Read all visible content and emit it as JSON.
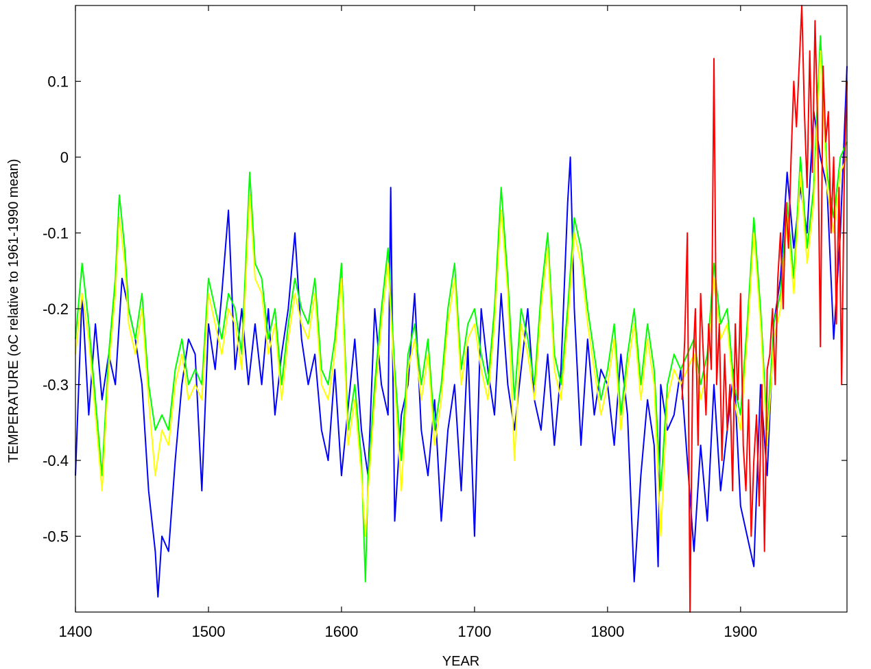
{
  "chart_data": {
    "type": "line",
    "title": "",
    "xlabel": "YEAR",
    "ylabel": "TEMPERATURE (oC relative to 1961-1990 mean)",
    "xlim": [
      1400,
      1980
    ],
    "ylim": [
      -0.6,
      0.2
    ],
    "xticks": [
      1400,
      1500,
      1600,
      1700,
      1800,
      1900
    ],
    "yticks": [
      -0.5,
      -0.4,
      -0.3,
      -0.2,
      -0.1,
      0,
      0.1
    ],
    "ytick_labels": [
      "-0.5",
      "-0.4",
      "-0.3",
      "-0.2",
      "-0.1",
      "0",
      "0.1"
    ],
    "xtick_labels": [
      "1400",
      "1500",
      "1600",
      "1700",
      "1800",
      "1900"
    ],
    "grid": false,
    "legend": "none",
    "series": [
      {
        "color": "#0000ff",
        "x": [
          1400,
          1405,
          1410,
          1415,
          1420,
          1425,
          1430,
          1435,
          1440,
          1445,
          1450,
          1455,
          1460,
          1462,
          1465,
          1470,
          1475,
          1480,
          1485,
          1490,
          1495,
          1500,
          1505,
          1510,
          1515,
          1520,
          1525,
          1530,
          1535,
          1540,
          1545,
          1550,
          1555,
          1560,
          1565,
          1570,
          1575,
          1580,
          1585,
          1590,
          1595,
          1600,
          1605,
          1610,
          1615,
          1620,
          1625,
          1630,
          1635,
          1637,
          1640,
          1645,
          1650,
          1655,
          1660,
          1665,
          1670,
          1675,
          1680,
          1685,
          1690,
          1695,
          1700,
          1705,
          1710,
          1715,
          1720,
          1725,
          1730,
          1735,
          1740,
          1745,
          1750,
          1755,
          1760,
          1765,
          1770,
          1772,
          1775,
          1780,
          1785,
          1790,
          1795,
          1800,
          1805,
          1810,
          1815,
          1820,
          1825,
          1830,
          1835,
          1838,
          1840,
          1845,
          1850,
          1855,
          1860,
          1865,
          1870,
          1875,
          1880,
          1885,
          1890,
          1895,
          1900,
          1905,
          1910,
          1915,
          1920,
          1925,
          1930,
          1935,
          1940,
          1945,
          1950,
          1955,
          1960,
          1965,
          1970,
          1975,
          1980
        ],
        "y": [
          -0.42,
          -0.18,
          -0.34,
          -0.22,
          -0.32,
          -0.26,
          -0.3,
          -0.16,
          -0.2,
          -0.24,
          -0.3,
          -0.44,
          -0.52,
          -0.58,
          -0.5,
          -0.52,
          -0.4,
          -0.3,
          -0.24,
          -0.26,
          -0.44,
          -0.22,
          -0.28,
          -0.18,
          -0.07,
          -0.28,
          -0.2,
          -0.3,
          -0.22,
          -0.3,
          -0.2,
          -0.34,
          -0.26,
          -0.2,
          -0.1,
          -0.24,
          -0.3,
          -0.26,
          -0.36,
          -0.4,
          -0.28,
          -0.42,
          -0.33,
          -0.24,
          -0.36,
          -0.42,
          -0.2,
          -0.3,
          -0.34,
          -0.04,
          -0.48,
          -0.34,
          -0.3,
          -0.18,
          -0.36,
          -0.42,
          -0.32,
          -0.48,
          -0.36,
          -0.3,
          -0.44,
          -0.25,
          -0.5,
          -0.2,
          -0.28,
          -0.34,
          -0.18,
          -0.3,
          -0.36,
          -0.28,
          -0.2,
          -0.32,
          -0.36,
          -0.26,
          -0.38,
          -0.28,
          -0.06,
          0.0,
          -0.2,
          -0.38,
          -0.24,
          -0.34,
          -0.28,
          -0.3,
          -0.38,
          -0.26,
          -0.34,
          -0.56,
          -0.42,
          -0.32,
          -0.38,
          -0.54,
          -0.3,
          -0.36,
          -0.34,
          -0.28,
          -0.4,
          -0.52,
          -0.38,
          -0.48,
          -0.3,
          -0.44,
          -0.36,
          -0.28,
          -0.46,
          -0.5,
          -0.54,
          -0.3,
          -0.42,
          -0.22,
          -0.16,
          -0.02,
          -0.12,
          -0.04,
          -0.1,
          0.06,
          0.0,
          -0.04,
          -0.24,
          -0.1,
          0.12
        ]
      },
      {
        "color": "#00ff00",
        "x": [
          1400,
          1405,
          1410,
          1415,
          1420,
          1425,
          1430,
          1433,
          1437,
          1440,
          1445,
          1450,
          1455,
          1460,
          1465,
          1470,
          1475,
          1480,
          1485,
          1490,
          1495,
          1500,
          1505,
          1510,
          1515,
          1520,
          1525,
          1531,
          1535,
          1540,
          1545,
          1550,
          1555,
          1560,
          1565,
          1570,
          1575,
          1580,
          1585,
          1590,
          1595,
          1600,
          1605,
          1610,
          1615,
          1618,
          1620,
          1625,
          1630,
          1635,
          1640,
          1645,
          1650,
          1655,
          1660,
          1665,
          1670,
          1675,
          1680,
          1685,
          1690,
          1695,
          1700,
          1705,
          1710,
          1715,
          1720,
          1725,
          1730,
          1735,
          1740,
          1745,
          1750,
          1755,
          1760,
          1765,
          1770,
          1775,
          1780,
          1785,
          1790,
          1795,
          1800,
          1805,
          1810,
          1815,
          1820,
          1825,
          1830,
          1835,
          1840,
          1845,
          1850,
          1855,
          1860,
          1865,
          1870,
          1875,
          1880,
          1885,
          1890,
          1895,
          1900,
          1905,
          1910,
          1915,
          1920,
          1925,
          1930,
          1935,
          1940,
          1945,
          1950,
          1955,
          1960,
          1965,
          1970,
          1975,
          1980
        ],
        "y": [
          -0.24,
          -0.14,
          -0.22,
          -0.32,
          -0.42,
          -0.26,
          -0.16,
          -0.05,
          -0.12,
          -0.2,
          -0.24,
          -0.18,
          -0.3,
          -0.36,
          -0.34,
          -0.36,
          -0.28,
          -0.24,
          -0.3,
          -0.28,
          -0.3,
          -0.16,
          -0.2,
          -0.24,
          -0.18,
          -0.2,
          -0.26,
          -0.02,
          -0.14,
          -0.16,
          -0.24,
          -0.2,
          -0.3,
          -0.22,
          -0.16,
          -0.2,
          -0.22,
          -0.16,
          -0.28,
          -0.3,
          -0.24,
          -0.14,
          -0.36,
          -0.3,
          -0.4,
          -0.56,
          -0.42,
          -0.3,
          -0.2,
          -0.12,
          -0.28,
          -0.4,
          -0.26,
          -0.22,
          -0.3,
          -0.24,
          -0.36,
          -0.3,
          -0.2,
          -0.14,
          -0.28,
          -0.22,
          -0.2,
          -0.26,
          -0.3,
          -0.2,
          -0.04,
          -0.16,
          -0.32,
          -0.2,
          -0.24,
          -0.3,
          -0.18,
          -0.1,
          -0.26,
          -0.3,
          -0.2,
          -0.08,
          -0.12,
          -0.2,
          -0.26,
          -0.32,
          -0.28,
          -0.22,
          -0.34,
          -0.26,
          -0.2,
          -0.3,
          -0.22,
          -0.28,
          -0.44,
          -0.3,
          -0.26,
          -0.28,
          -0.26,
          -0.24,
          -0.3,
          -0.26,
          -0.14,
          -0.22,
          -0.2,
          -0.3,
          -0.34,
          -0.22,
          -0.08,
          -0.2,
          -0.36,
          -0.22,
          -0.18,
          -0.06,
          -0.16,
          0.0,
          -0.12,
          -0.04,
          0.16,
          -0.02,
          -0.08,
          0.0,
          0.02
        ]
      },
      {
        "color": "#ffff00",
        "x": [
          1400,
          1405,
          1410,
          1415,
          1420,
          1425,
          1430,
          1433,
          1437,
          1440,
          1445,
          1450,
          1455,
          1460,
          1465,
          1470,
          1475,
          1480,
          1485,
          1490,
          1495,
          1500,
          1505,
          1510,
          1515,
          1520,
          1525,
          1531,
          1535,
          1540,
          1545,
          1550,
          1555,
          1560,
          1565,
          1570,
          1575,
          1580,
          1585,
          1590,
          1595,
          1600,
          1605,
          1610,
          1615,
          1618,
          1620,
          1625,
          1630,
          1635,
          1640,
          1645,
          1650,
          1655,
          1660,
          1665,
          1670,
          1675,
          1680,
          1685,
          1690,
          1695,
          1700,
          1705,
          1710,
          1715,
          1720,
          1725,
          1730,
          1735,
          1740,
          1745,
          1750,
          1755,
          1760,
          1765,
          1770,
          1775,
          1780,
          1785,
          1790,
          1795,
          1800,
          1805,
          1810,
          1815,
          1820,
          1825,
          1830,
          1835,
          1840,
          1845,
          1850,
          1855,
          1860,
          1865,
          1870,
          1875,
          1880,
          1885,
          1890,
          1895,
          1900,
          1905,
          1910,
          1915,
          1920,
          1925,
          1930,
          1935,
          1940,
          1945,
          1950,
          1955,
          1960,
          1965,
          1970,
          1975,
          1980
        ],
        "y": [
          -0.26,
          -0.18,
          -0.24,
          -0.34,
          -0.44,
          -0.28,
          -0.18,
          -0.08,
          -0.14,
          -0.22,
          -0.26,
          -0.2,
          -0.32,
          -0.42,
          -0.36,
          -0.38,
          -0.3,
          -0.26,
          -0.32,
          -0.3,
          -0.32,
          -0.18,
          -0.22,
          -0.26,
          -0.2,
          -0.22,
          -0.28,
          -0.05,
          -0.16,
          -0.18,
          -0.26,
          -0.22,
          -0.32,
          -0.24,
          -0.18,
          -0.22,
          -0.24,
          -0.18,
          -0.3,
          -0.32,
          -0.26,
          -0.16,
          -0.38,
          -0.32,
          -0.42,
          -0.5,
          -0.44,
          -0.32,
          -0.22,
          -0.14,
          -0.3,
          -0.44,
          -0.28,
          -0.24,
          -0.32,
          -0.26,
          -0.38,
          -0.32,
          -0.22,
          -0.16,
          -0.3,
          -0.24,
          -0.22,
          -0.28,
          -0.32,
          -0.22,
          -0.07,
          -0.18,
          -0.4,
          -0.22,
          -0.26,
          -0.32,
          -0.2,
          -0.12,
          -0.28,
          -0.32,
          -0.22,
          -0.1,
          -0.14,
          -0.22,
          -0.28,
          -0.34,
          -0.3,
          -0.24,
          -0.36,
          -0.28,
          -0.22,
          -0.32,
          -0.24,
          -0.3,
          -0.5,
          -0.32,
          -0.28,
          -0.3,
          -0.28,
          -0.26,
          -0.32,
          -0.28,
          -0.16,
          -0.24,
          -0.22,
          -0.32,
          -0.36,
          -0.24,
          -0.1,
          -0.22,
          -0.38,
          -0.24,
          -0.2,
          -0.08,
          -0.18,
          -0.02,
          -0.14,
          -0.06,
          0.14,
          -0.04,
          -0.1,
          -0.02,
          0.0
        ]
      },
      {
        "color": "#ff0000",
        "x": [
          1856,
          1858,
          1860,
          1862,
          1864,
          1866,
          1868,
          1870,
          1872,
          1874,
          1876,
          1878,
          1880,
          1882,
          1884,
          1886,
          1888,
          1890,
          1892,
          1894,
          1896,
          1898,
          1900,
          1902,
          1904,
          1906,
          1908,
          1910,
          1912,
          1914,
          1916,
          1918,
          1920,
          1922,
          1924,
          1926,
          1928,
          1930,
          1932,
          1934,
          1936,
          1938,
          1940,
          1942,
          1944,
          1946,
          1948,
          1950,
          1952,
          1954,
          1956,
          1958,
          1960,
          1962,
          1964,
          1966,
          1968,
          1970,
          1972,
          1974,
          1976,
          1978,
          1980
        ],
        "y": [
          -0.32,
          -0.24,
          -0.1,
          -0.6,
          -0.28,
          -0.2,
          -0.38,
          -0.18,
          -0.26,
          -0.34,
          -0.22,
          -0.28,
          0.13,
          -0.3,
          -0.22,
          -0.4,
          -0.26,
          -0.36,
          -0.3,
          -0.44,
          -0.22,
          -0.32,
          -0.18,
          -0.38,
          -0.44,
          -0.32,
          -0.5,
          -0.4,
          -0.34,
          -0.46,
          -0.3,
          -0.52,
          -0.28,
          -0.26,
          -0.2,
          -0.3,
          -0.16,
          -0.1,
          -0.2,
          -0.06,
          -0.12,
          0.0,
          0.1,
          0.04,
          0.12,
          0.2,
          0.06,
          -0.04,
          0.14,
          -0.02,
          0.18,
          0.04,
          -0.25,
          0.12,
          0.02,
          0.06,
          -0.1,
          0.0,
          -0.22,
          -0.04,
          -0.3,
          -0.02,
          0.1
        ]
      }
    ]
  }
}
